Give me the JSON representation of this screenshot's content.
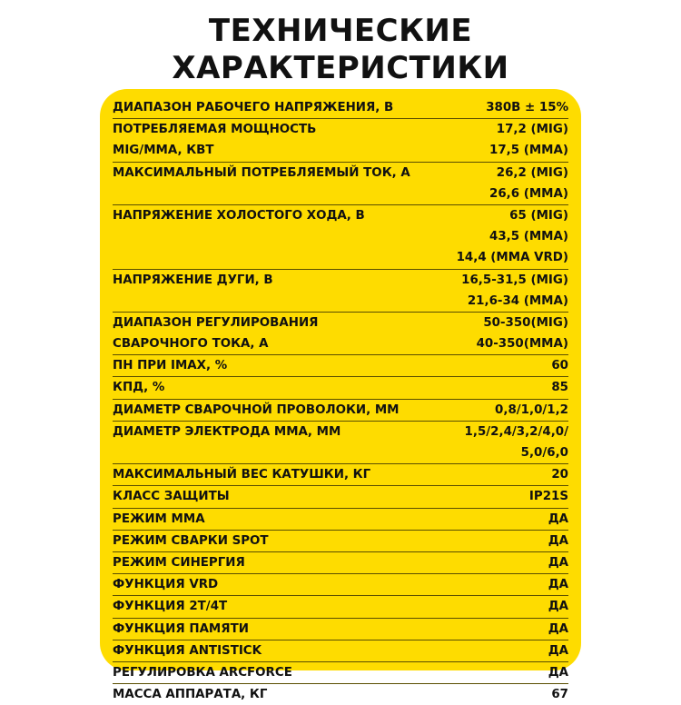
{
  "title": [
    "ТЕХНИЧЕСКИЕ",
    "ХАРАКТЕРИСТИКИ"
  ],
  "colors": {
    "card": "#fedc00",
    "text": "#111111"
  },
  "specs": [
    {
      "label": [
        "ДИАПАЗОН РАБОЧЕГО НАПРЯЖЕНИЯ, В"
      ],
      "value": [
        "380В ± 15%"
      ]
    },
    {
      "label": [
        "ПОТРЕБЛЯЕМАЯ МОЩНОСТЬ",
        "MIG/MMA, КВТ"
      ],
      "value": [
        "17,2 (MIG)",
        "17,5 (MMA)"
      ]
    },
    {
      "label": [
        "МАКСИМАЛЬНЫЙ ПОТРЕБЛЯЕМЫЙ ТОК, А"
      ],
      "value": [
        "26,2 (MIG)",
        "26,6 (MMA)"
      ]
    },
    {
      "label": [
        "НАПРЯЖЕНИЕ ХОЛОСТОГО ХОДА, В"
      ],
      "value": [
        "65 (MIG)",
        "43,5 (MMA)",
        "14,4 (MMA VRD)"
      ]
    },
    {
      "label": [
        "НАПРЯЖЕНИЕ ДУГИ, В"
      ],
      "value": [
        "16,5-31,5 (MIG)",
        "21,6-34 (MMA)"
      ]
    },
    {
      "label": [
        "ДИАПАЗОН РЕГУЛИРОВАНИЯ",
        "СВАРОЧНОГО ТОКА, А"
      ],
      "value": [
        "50-350(MIG)",
        "40-350(MMA)"
      ]
    },
    {
      "label": [
        "ПН ПРИ IMAX, %"
      ],
      "value": [
        "60"
      ]
    },
    {
      "label": [
        "КПД, %"
      ],
      "value": [
        "85"
      ]
    },
    {
      "label": [
        "ДИАМЕТР СВАРОЧНОЙ ПРОВОЛОКИ, ММ"
      ],
      "value": [
        "0,8/1,0/1,2"
      ]
    },
    {
      "label": [
        "ДИАМЕТР ЭЛЕКТРОДА ММА, ММ"
      ],
      "value": [
        "1,5/2,4/3,2/4,0/",
        "5,0/6,0"
      ]
    },
    {
      "label": [
        "МАКСИМАЛЬНЫЙ ВЕС КАТУШКИ, КГ"
      ],
      "value": [
        "20"
      ]
    },
    {
      "label": [
        "КЛАСС ЗАЩИТЫ"
      ],
      "value": [
        "IP21S"
      ]
    },
    {
      "label": [
        "РЕЖИМ ММА"
      ],
      "value": [
        "ДА"
      ]
    },
    {
      "label": [
        "РЕЖИМ СВАРКИ SPOT"
      ],
      "value": [
        "ДА"
      ]
    },
    {
      "label": [
        "РЕЖИМ СИНЕРГИЯ"
      ],
      "value": [
        "ДА"
      ]
    },
    {
      "label": [
        "ФУНКЦИЯ VRD"
      ],
      "value": [
        "ДА"
      ]
    },
    {
      "label": [
        "ФУНКЦИЯ 2Т/4Т"
      ],
      "value": [
        "ДА"
      ]
    },
    {
      "label": [
        "ФУНКЦИЯ ПАМЯТИ"
      ],
      "value": [
        "ДА"
      ]
    },
    {
      "label": [
        "ФУНКЦИЯ ANTISTICK"
      ],
      "value": [
        "ДА"
      ]
    },
    {
      "label": [
        "РЕГУЛИРОВКА ARCFORCE"
      ],
      "value": [
        "ДА"
      ]
    },
    {
      "label": [
        "МАССА АППАРАТА, КГ"
      ],
      "value": [
        "67"
      ]
    }
  ]
}
